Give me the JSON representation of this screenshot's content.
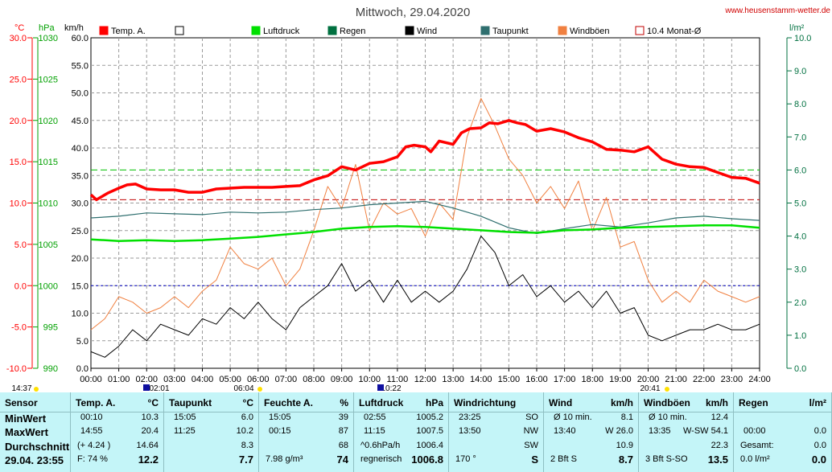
{
  "colors": {
    "temp": "#ff0000",
    "luft": "#00e000",
    "regen": "#007040",
    "wind": "#000000",
    "taupunkt": "#2f6f6f",
    "boeen": "#f08040",
    "monat": "#c00000",
    "blue": "#0000c0"
  },
  "header": {
    "title": "Mittwoch, 29.04.2020",
    "website": "www.heusenstamm-wetter.de"
  },
  "axes": {
    "temp_unit": "°C",
    "hpa_unit": "hPa",
    "kmh_unit": "km/h",
    "rain_unit": "l/m²",
    "temp_ticks": [
      "30.0",
      "25.0",
      "20.0",
      "15.0",
      "10.0",
      "5.0",
      "0.0",
      "-5.0",
      "-10.0"
    ],
    "hpa_ticks": [
      "1030",
      "1025",
      "1020",
      "1015",
      "1010",
      "1005",
      "1000",
      "995",
      "990"
    ],
    "kmh_ticks": [
      "60.0",
      "55.0",
      "50.0",
      "45.0",
      "40.0",
      "35.0",
      "30.0",
      "25.0",
      "20.0",
      "15.0",
      "10.0",
      "5.0",
      "0.0"
    ],
    "rain_ticks": [
      "10.0",
      "9.0",
      "8.0",
      "7.0",
      "6.0",
      "5.0",
      "4.0",
      "3.0",
      "2.0",
      "1.0",
      "0.0"
    ],
    "time_ticks": [
      "00:00",
      "01:00",
      "02:00",
      "03:00",
      "04:00",
      "05:00",
      "06:00",
      "07:00",
      "08:00",
      "09:00",
      "10:00",
      "11:00",
      "12:00",
      "13:00",
      "14:00",
      "15:00",
      "16:00",
      "17:00",
      "18:00",
      "19:00",
      "20:00",
      "21:00",
      "22:00",
      "23:00",
      "24:00"
    ]
  },
  "legend": [
    {
      "label": "Temp. A.",
      "color": "#ff0000",
      "style": "filled"
    },
    {
      "label": "",
      "color": "#000000",
      "style": "empty"
    },
    {
      "label": "Luftdruck",
      "color": "#00e000",
      "style": "filled"
    },
    {
      "label": "Regen",
      "color": "#007040",
      "style": "filled"
    },
    {
      "label": "Wind",
      "color": "#000000",
      "style": "filled"
    },
    {
      "label": "Taupunkt",
      "color": "#2f6f6f",
      "style": "filled"
    },
    {
      "label": "Windböen",
      "color": "#f08040",
      "style": "filled"
    },
    {
      "label": "10.4 Monat-Ø",
      "color": "#c00000",
      "style": "outline"
    }
  ],
  "markers": [
    "14:37",
    "02:01",
    "06:04",
    "10:22",
    "20:41"
  ],
  "chart_data": {
    "type": "line",
    "x_unit": "hours",
    "xlim": [
      0,
      24
    ],
    "temp_ylim": [
      -10,
      30
    ],
    "pressure_ylim": [
      990,
      1030
    ],
    "wind_ylim": [
      0,
      60
    ],
    "rain_ylim": [
      0,
      10
    ],
    "monthly_avg_temp": 10.4,
    "series": [
      {
        "name": "Temp. A.",
        "axis": "temp",
        "points": [
          [
            0,
            11.0
          ],
          [
            0.2,
            10.4
          ],
          [
            0.6,
            11.2
          ],
          [
            1,
            11.8
          ],
          [
            1.3,
            12.2
          ],
          [
            1.6,
            12.3
          ],
          [
            2,
            11.7
          ],
          [
            2.5,
            11.6
          ],
          [
            3,
            11.6
          ],
          [
            3.5,
            11.3
          ],
          [
            4,
            11.3
          ],
          [
            4.5,
            11.7
          ],
          [
            5,
            11.8
          ],
          [
            5.5,
            11.9
          ],
          [
            6,
            11.9
          ],
          [
            6.5,
            11.9
          ],
          [
            7,
            12.0
          ],
          [
            7.5,
            12.1
          ],
          [
            8,
            12.8
          ],
          [
            8.5,
            13.3
          ],
          [
            9,
            14.4
          ],
          [
            9.5,
            14.0
          ],
          [
            10,
            14.8
          ],
          [
            10.5,
            15.0
          ],
          [
            11,
            15.6
          ],
          [
            11.3,
            16.8
          ],
          [
            11.6,
            17.0
          ],
          [
            12,
            16.8
          ],
          [
            12.2,
            16.2
          ],
          [
            12.5,
            17.5
          ],
          [
            13,
            17.1
          ],
          [
            13.3,
            18.5
          ],
          [
            13.6,
            19.0
          ],
          [
            14,
            19.1
          ],
          [
            14.3,
            19.7
          ],
          [
            14.6,
            19.6
          ],
          [
            15,
            20.0
          ],
          [
            15.3,
            19.7
          ],
          [
            15.6,
            19.5
          ],
          [
            16,
            18.7
          ],
          [
            16.5,
            19.0
          ],
          [
            17,
            18.6
          ],
          [
            17.5,
            17.9
          ],
          [
            18,
            17.4
          ],
          [
            18.5,
            16.5
          ],
          [
            19,
            16.4
          ],
          [
            19.5,
            16.2
          ],
          [
            20,
            16.8
          ],
          [
            20.5,
            15.3
          ],
          [
            21,
            14.7
          ],
          [
            21.5,
            14.4
          ],
          [
            22,
            14.3
          ],
          [
            22.5,
            13.7
          ],
          [
            23,
            13.1
          ],
          [
            23.5,
            13.0
          ],
          [
            24,
            12.4
          ]
        ]
      },
      {
        "name": "Luftdruck",
        "axis": "pressure",
        "points": [
          [
            0,
            1005.6
          ],
          [
            1,
            1005.4
          ],
          [
            2,
            1005.5
          ],
          [
            3,
            1005.4
          ],
          [
            4,
            1005.5
          ],
          [
            5,
            1005.7
          ],
          [
            6,
            1005.9
          ],
          [
            7,
            1006.2
          ],
          [
            8,
            1006.5
          ],
          [
            9,
            1006.9
          ],
          [
            10,
            1007.1
          ],
          [
            11,
            1007.2
          ],
          [
            12,
            1007.1
          ],
          [
            13,
            1006.9
          ],
          [
            14,
            1006.7
          ],
          [
            15,
            1006.5
          ],
          [
            16,
            1006.4
          ],
          [
            17,
            1006.7
          ],
          [
            18,
            1006.8
          ],
          [
            19,
            1007.0
          ],
          [
            20,
            1007.1
          ],
          [
            21,
            1007.2
          ],
          [
            22,
            1007.3
          ],
          [
            23,
            1007.3
          ],
          [
            24,
            1007.0
          ]
        ]
      },
      {
        "name": "Taupunkt",
        "axis": "temp",
        "points": [
          [
            0,
            8.2
          ],
          [
            1,
            8.4
          ],
          [
            2,
            8.8
          ],
          [
            3,
            8.7
          ],
          [
            4,
            8.6
          ],
          [
            5,
            8.9
          ],
          [
            6,
            8.8
          ],
          [
            7,
            8.9
          ],
          [
            8,
            9.2
          ],
          [
            9,
            9.4
          ],
          [
            10,
            9.8
          ],
          [
            11,
            10.0
          ],
          [
            12,
            10.2
          ],
          [
            13,
            9.4
          ],
          [
            14,
            8.4
          ],
          [
            15,
            7.0
          ],
          [
            16,
            6.3
          ],
          [
            17,
            6.9
          ],
          [
            18,
            7.4
          ],
          [
            19,
            7.1
          ],
          [
            20,
            7.6
          ],
          [
            21,
            8.2
          ],
          [
            22,
            8.4
          ],
          [
            23,
            8.1
          ],
          [
            24,
            7.9
          ]
        ]
      },
      {
        "name": "Wind",
        "axis": "wind",
        "points": [
          [
            0,
            3
          ],
          [
            0.5,
            2
          ],
          [
            1,
            4
          ],
          [
            1.5,
            7
          ],
          [
            2,
            5
          ],
          [
            2.5,
            8
          ],
          [
            3,
            7
          ],
          [
            3.5,
            6
          ],
          [
            4,
            9
          ],
          [
            4.5,
            8
          ],
          [
            5,
            11
          ],
          [
            5.5,
            9
          ],
          [
            6,
            12
          ],
          [
            6.5,
            9
          ],
          [
            7,
            7
          ],
          [
            7.5,
            11
          ],
          [
            8,
            13
          ],
          [
            8.5,
            15
          ],
          [
            9,
            19
          ],
          [
            9.5,
            14
          ],
          [
            10,
            16
          ],
          [
            10.5,
            12
          ],
          [
            11,
            16
          ],
          [
            11.5,
            12
          ],
          [
            12,
            14
          ],
          [
            12.5,
            12
          ],
          [
            13,
            14
          ],
          [
            13.5,
            18
          ],
          [
            14,
            24
          ],
          [
            14.5,
            21
          ],
          [
            15,
            15
          ],
          [
            15.5,
            17
          ],
          [
            16,
            13
          ],
          [
            16.5,
            15
          ],
          [
            17,
            12
          ],
          [
            17.5,
            14
          ],
          [
            18,
            11
          ],
          [
            18.5,
            14
          ],
          [
            19,
            10
          ],
          [
            19.5,
            11
          ],
          [
            20,
            6
          ],
          [
            20.5,
            5
          ],
          [
            21,
            6
          ],
          [
            21.5,
            7
          ],
          [
            22,
            7
          ],
          [
            22.5,
            8
          ],
          [
            23,
            7
          ],
          [
            23.5,
            7
          ],
          [
            24,
            8
          ]
        ]
      },
      {
        "name": "Windböen",
        "axis": "wind",
        "points": [
          [
            0,
            7
          ],
          [
            0.5,
            9
          ],
          [
            1,
            13
          ],
          [
            1.5,
            12
          ],
          [
            2,
            10
          ],
          [
            2.5,
            11
          ],
          [
            3,
            13
          ],
          [
            3.5,
            11
          ],
          [
            4,
            14
          ],
          [
            4.5,
            16
          ],
          [
            5,
            22
          ],
          [
            5.5,
            19
          ],
          [
            6,
            18
          ],
          [
            6.5,
            20
          ],
          [
            7,
            15
          ],
          [
            7.5,
            18
          ],
          [
            8,
            25
          ],
          [
            8.5,
            33
          ],
          [
            9,
            29
          ],
          [
            9.5,
            37
          ],
          [
            10,
            25
          ],
          [
            10.5,
            30
          ],
          [
            11,
            28
          ],
          [
            11.5,
            29
          ],
          [
            12,
            24
          ],
          [
            12.5,
            30
          ],
          [
            13,
            27
          ],
          [
            13.5,
            42
          ],
          [
            14,
            49
          ],
          [
            14.5,
            44
          ],
          [
            15,
            38
          ],
          [
            15.5,
            35
          ],
          [
            16,
            30
          ],
          [
            16.5,
            33
          ],
          [
            17,
            29
          ],
          [
            17.5,
            34
          ],
          [
            18,
            25
          ],
          [
            18.5,
            31
          ],
          [
            19,
            22
          ],
          [
            19.5,
            23
          ],
          [
            20,
            16
          ],
          [
            20.5,
            12
          ],
          [
            21,
            14
          ],
          [
            21.5,
            12
          ],
          [
            22,
            16
          ],
          [
            22.5,
            14
          ],
          [
            23,
            13
          ],
          [
            23.5,
            12
          ],
          [
            24,
            13
          ]
        ]
      }
    ]
  },
  "table": {
    "row_labels": {
      "sensor": "Sensor",
      "min": "MinWert",
      "max": "MaxWert",
      "avg": "Durchschnitt",
      "now": "29.04. 23:55"
    },
    "temp": {
      "title": "Temp. A.",
      "unit": "°C",
      "min_time": "00:10",
      "min": "10.3",
      "max_time": "14:55",
      "max": "20.4",
      "avg_note": "(+ 4.24 )",
      "avg": "14.64",
      "now_note": "F: 74 %",
      "now": "12.2"
    },
    "taupunkt": {
      "title": "Taupunkt",
      "unit": "°C",
      "min_time": "15:05",
      "min": "6.0",
      "max_time": "11:25",
      "max": "10.2",
      "avg": "8.3",
      "now": "7.7"
    },
    "feuchte": {
      "title": "Feuchte A.",
      "unit": "%",
      "min_time": "15:05",
      "min": "39",
      "max_time": "00:15",
      "max": "87",
      "avg": "68",
      "now_note": "7.98 g/m³",
      "now": "74"
    },
    "luftdruck": {
      "title": "Luftdruck",
      "unit": "hPa",
      "min_time": "02:55",
      "min": "1005.2",
      "max_time": "11:15",
      "max": "1007.5",
      "avg_note": "^0.6hPa/h",
      "avg": "1006.4",
      "now_note": "regnerisch",
      "now": "1006.8"
    },
    "richtung": {
      "title": "Windrichtung",
      "min_time": "23:25",
      "min": "SO",
      "max_time": "13:50",
      "max": "NW",
      "avg": "SW",
      "now_note": "170 °",
      "now": "S"
    },
    "wind": {
      "title": "Wind",
      "unit": "km/h",
      "min_time": "Ø 10 min.",
      "min": "8.1",
      "max_time": "13:40",
      "max": "W 26.0",
      "avg": "10.9",
      "now_note": "2 Bft S",
      "now": "8.7"
    },
    "boeen": {
      "title": "Windböen",
      "unit": "km/h",
      "min_time": "Ø 10 min.",
      "min": "12.4",
      "max_time": "13:35",
      "max": "W-SW 54.1",
      "avg": "22.3",
      "now_note": "3 Bft S-SO",
      "now": "13.5"
    },
    "regen": {
      "title": "Regen",
      "unit": "l/m²",
      "max_time": "00:00",
      "max": "0.0",
      "avg_note": "Gesamt:",
      "avg": "0.0",
      "now_note": "0.0 l/m²",
      "now": "0.0"
    }
  }
}
